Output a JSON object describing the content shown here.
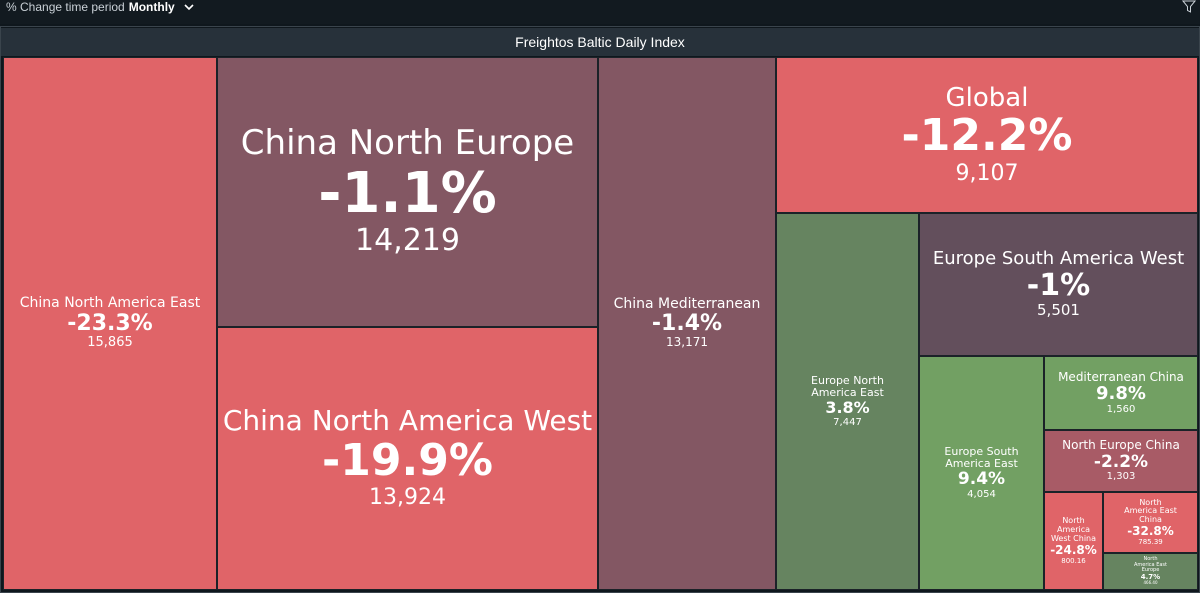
{
  "controls": {
    "period_label": "% Change time period",
    "period_value": "Monthly"
  },
  "icons": {
    "period_dropdown": "chevron-down-icon",
    "filter": "filter-icon"
  },
  "chart_data": {
    "type": "treemap",
    "title": "Freightos Baltic Daily Index",
    "colors": {
      "decline": "#e06468",
      "dark": "#835763",
      "mixed": "#a85b66",
      "neutral": "#634f5c",
      "growth": "#72a063",
      "growth_dark": "#668460"
    },
    "items": [
      {
        "name": "China North America East",
        "change_pct": -23.3,
        "change": "-23.3%",
        "value": 15865,
        "value_label": "15,865",
        "color": "#e06468"
      },
      {
        "name": "China North Europe",
        "change_pct": -1.1,
        "change": "-1.1%",
        "value": 14219,
        "value_label": "14,219",
        "color": "#835763"
      },
      {
        "name": "China North America West",
        "change_pct": -19.9,
        "change": "-19.9%",
        "value": 13924,
        "value_label": "13,924",
        "color": "#e06468"
      },
      {
        "name": "China Mediterranean",
        "change_pct": -1.4,
        "change": "-1.4%",
        "value": 13171,
        "value_label": "13,171",
        "color": "#835763"
      },
      {
        "name": "Global",
        "change_pct": -12.2,
        "change": "-12.2%",
        "value": 9107,
        "value_label": "9,107",
        "color": "#e06468"
      },
      {
        "name": "Europe South America West",
        "change_pct": -1.0,
        "change": "-1%",
        "value": 5501,
        "value_label": "5,501",
        "color": "#634f5c"
      },
      {
        "name": "Europe North America East",
        "change_pct": 3.8,
        "change": "3.8%",
        "value": 7447,
        "value_label": "7,447",
        "color": "#668460"
      },
      {
        "name": "Europe South America East",
        "change_pct": 9.4,
        "change": "9.4%",
        "value": 4054,
        "value_label": "4,054",
        "color": "#72a063"
      },
      {
        "name": "Mediterranean China",
        "change_pct": 9.8,
        "change": "9.8%",
        "value": 1560,
        "value_label": "1,560",
        "color": "#72a063"
      },
      {
        "name": "North Europe China",
        "change_pct": -2.2,
        "change": "-2.2%",
        "value": 1303,
        "value_label": "1,303",
        "color": "#a85b66"
      },
      {
        "name": "North America West China",
        "change_pct": -24.8,
        "change": "-24.8%",
        "value": 800.16,
        "value_label": "800.16",
        "color": "#e06468"
      },
      {
        "name": "North America East China",
        "change_pct": -32.8,
        "change": "-32.8%",
        "value": 785.39,
        "value_label": "785.39",
        "color": "#e06468"
      },
      {
        "name": "North America East Europe",
        "change_pct": 4.7,
        "change": "4.7%",
        "value": 466.4,
        "value_label": "466.40",
        "color": "#668460"
      }
    ]
  }
}
